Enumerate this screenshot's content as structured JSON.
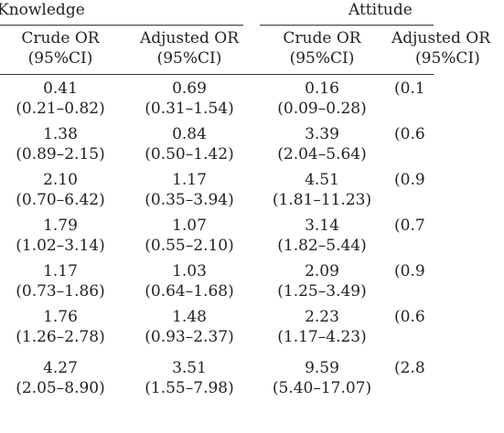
{
  "header": {
    "groups": [
      "Knowledge",
      "Attitude"
    ],
    "columns": [
      {
        "line1": "Crude OR",
        "line2": "(95%CI)"
      },
      {
        "line1": "Adjusted OR",
        "line2": "(95%CI)"
      },
      {
        "line1": "Crude OR",
        "line2": "(95%CI)"
      },
      {
        "line1": "Adjusted OR",
        "line2": "(95%CI)"
      }
    ]
  },
  "rows": [
    [
      [
        "0.41",
        "(0.21–0.82)"
      ],
      [
        "0.69",
        "(0.31–1.54)"
      ],
      [
        "0.16",
        "(0.09–0.28)"
      ],
      [
        "",
        "(0.1"
      ]
    ],
    [
      [
        "1.38",
        "(0.89–2.15)"
      ],
      [
        "0.84",
        "(0.50–1.42)"
      ],
      [
        "3.39",
        "(2.04–5.64)"
      ],
      [
        "",
        "(0.6"
      ]
    ],
    [
      [
        "2.10",
        "(0.70–6.42)"
      ],
      [
        "1.17",
        "(0.35–3.94)"
      ],
      [
        "4.51",
        "(1.81–11.23)"
      ],
      [
        "",
        "(0.9"
      ]
    ],
    [
      [
        "1.79",
        "(1.02–3.14)"
      ],
      [
        "1.07",
        "(0.55–2.10)"
      ],
      [
        "3.14",
        "(1.82–5.44)"
      ],
      [
        "",
        "(0.7"
      ]
    ],
    [
      [
        "1.17",
        "(0.73–1.86)"
      ],
      [
        "1.03",
        "(0.64–1.68)"
      ],
      [
        "2.09",
        "(1.25–3.49)"
      ],
      [
        "",
        "(0.9"
      ]
    ],
    [
      [
        "1.76",
        "(1.26–2.78)"
      ],
      [
        "1.48",
        "(0.93–2.37)"
      ],
      [
        "2.23",
        "(1.17–4.23)"
      ],
      [
        "",
        "(0.6"
      ]
    ],
    [
      [
        "4.27",
        "(2.05–8.90)"
      ],
      [
        "3.51",
        "(1.55–7.98)"
      ],
      [
        "9.59",
        "(5.40–17.07)"
      ],
      [
        "",
        "(2.8"
      ]
    ]
  ]
}
